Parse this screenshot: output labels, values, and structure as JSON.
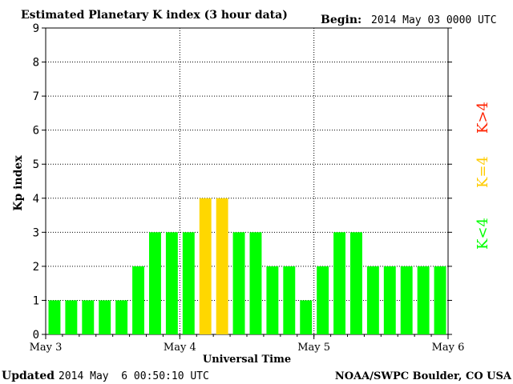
{
  "chart_data": {
    "type": "bar",
    "title": "Estimated Planetary K index (3 hour data)",
    "begin_label": "Begin:",
    "begin_value": "2014 May 03 0000 UTC",
    "xlabel": "Universal Time",
    "ylabel": "Kp index",
    "ylim": [
      0,
      9
    ],
    "y_ticks": [
      "0",
      "1",
      "2",
      "3",
      "4",
      "5",
      "6",
      "7",
      "8",
      "9"
    ],
    "x_tick_labels": [
      "May 3",
      "May 4",
      "May 5",
      "May 6"
    ],
    "grid": true,
    "values": [
      1,
      1,
      1,
      1,
      1,
      2,
      3,
      3,
      3,
      4,
      4,
      3,
      3,
      2,
      2,
      1,
      2,
      3,
      3,
      2,
      2,
      2,
      2,
      2
    ],
    "legend": [
      {
        "label": "K<4",
        "color": "#00ff00"
      },
      {
        "label": "K=4",
        "color": "#ffcc00"
      },
      {
        "label": "K>4",
        "color": "#ff2200"
      }
    ],
    "colors": {
      "below": "#00ff00",
      "equal": "#ffd700",
      "above": "#ff0000"
    },
    "updated_label": "Updated",
    "updated_value": "2014 May  6 00:50:10 UTC",
    "source": "NOAA/SWPC Boulder, CO USA"
  }
}
